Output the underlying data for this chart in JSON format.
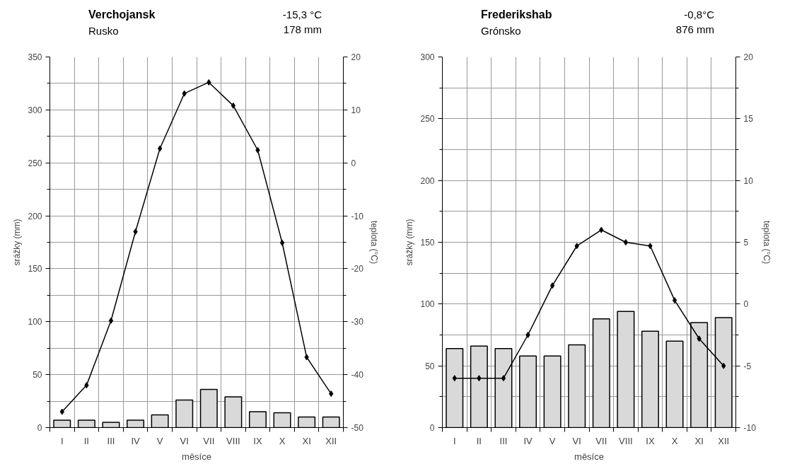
{
  "chart_data": [
    {
      "type": "bar",
      "title": "Verchojansk",
      "subtitle": "Rusko",
      "annotations": [
        "-15,3 °C",
        "178 mm"
      ],
      "xlabel": "měsíce",
      "ylabel": "srážky (mm)",
      "y2label": "teplota (°C)",
      "categories": [
        "I",
        "II",
        "III",
        "IV",
        "V",
        "VI",
        "VII",
        "VIII",
        "IX",
        "X",
        "XI",
        "XII"
      ],
      "series": [
        {
          "color": "#d9d9d9",
          "values": [
            7,
            7,
            5,
            7,
            12,
            26,
            36,
            29,
            15,
            14,
            10,
            10
          ]
        },
        {
          "type": "line",
          "axis": "y2",
          "color": "#000000",
          "values": [
            -47.0,
            -42.0,
            -29.8,
            -13.0,
            2.7,
            13.1,
            15.2,
            10.8,
            2.4,
            -15.1,
            -36.7,
            -43.6
          ]
        }
      ],
      "ylim": [
        0,
        350
      ],
      "yticks": [
        0,
        50,
        100,
        150,
        200,
        250,
        300,
        350
      ],
      "y2lim": [
        -50,
        20
      ],
      "y2ticks": [
        -50,
        -40,
        -30,
        -20,
        -10,
        0,
        10,
        20
      ],
      "grid": true,
      "marker": "diamond",
      "line_style": "solid"
    },
    {
      "type": "bar",
      "title": "Frederikshab",
      "subtitle": "Grónsko",
      "annotations": [
        "-0,8°C",
        "876 mm"
      ],
      "xlabel": "měsíce",
      "ylabel": "srážky (mm)",
      "y2label": "teplota (°C)",
      "categories": [
        "I",
        "II",
        "III",
        "IV",
        "V",
        "VI",
        "VII",
        "VIII",
        "IX",
        "X",
        "XI",
        "XII"
      ],
      "series": [
        {
          "color": "#d9d9d9",
          "values": [
            64,
            66,
            64,
            58,
            58,
            67,
            88,
            94,
            78,
            70,
            85,
            89
          ]
        },
        {
          "type": "line",
          "axis": "y2",
          "color": "#000000",
          "values": [
            -6.0,
            -6.0,
            -6.0,
            -2.5,
            1.5,
            4.7,
            6.0,
            5.0,
            4.7,
            0.3,
            -2.8,
            -5.0
          ]
        }
      ],
      "ylim": [
        0,
        300
      ],
      "yticks": [
        0,
        50,
        100,
        150,
        200,
        250,
        300
      ],
      "y2lim": [
        -10,
        20
      ],
      "y2ticks": [
        -10,
        -5,
        0,
        5,
        10,
        15,
        20
      ],
      "grid": true,
      "marker": "diamond",
      "line_style": "solid"
    }
  ]
}
